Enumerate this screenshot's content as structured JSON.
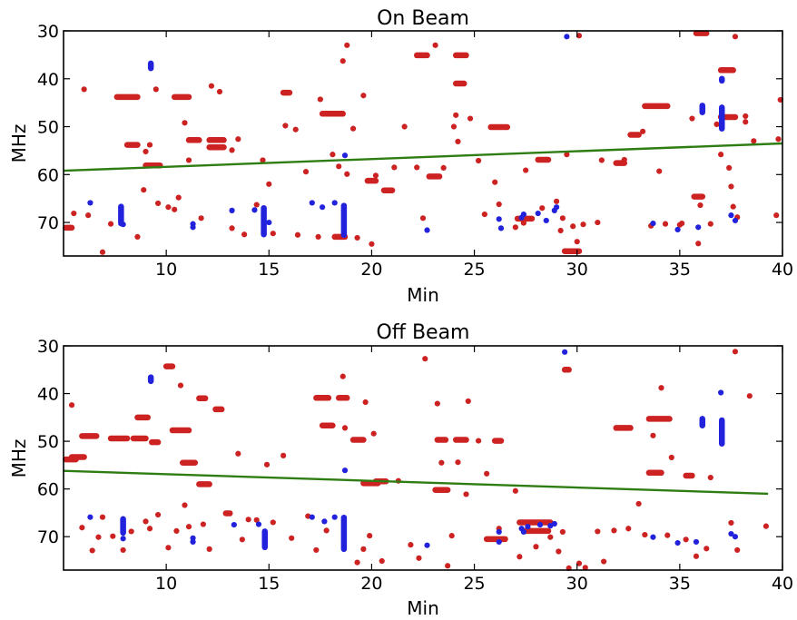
{
  "figure": {
    "colors": {
      "red": "#cc2222",
      "blue": "#2222dd",
      "fit": "#2e7d12",
      "axes": "#000000"
    }
  },
  "chart_data": [
    {
      "type": "scatter",
      "title": "On Beam",
      "xlabel": "Min",
      "ylabel": "MHz",
      "xlim": [
        5,
        40
      ],
      "ylim": [
        77,
        30
      ],
      "y_inverted": true,
      "xticks": [
        "10",
        "15",
        "20",
        "25",
        "30",
        "35",
        "40"
      ],
      "yticks": [
        "30",
        "40",
        "50",
        "60",
        "70"
      ],
      "grid": false,
      "fit_line": {
        "x": [
          5,
          40
        ],
        "y": [
          59.2,
          53.5
        ]
      },
      "red_runs": [
        [
          7.6,
          8.6,
          43.8
        ],
        [
          10.4,
          11.1,
          43.8
        ],
        [
          8.1,
          8.6,
          53.8
        ],
        [
          9.0,
          9.7,
          58.1
        ],
        [
          11.1,
          11.6,
          52.8
        ],
        [
          12.1,
          12.8,
          52.8
        ],
        [
          12.1,
          12.8,
          54.3
        ],
        [
          15.7,
          16.0,
          42.9
        ],
        [
          17.6,
          18.6,
          47.3
        ],
        [
          22.2,
          22.7,
          35.1
        ],
        [
          24.1,
          24.6,
          35.1
        ],
        [
          24.1,
          24.5,
          41.0
        ],
        [
          25.8,
          26.6,
          50.1
        ],
        [
          28.1,
          28.6,
          56.9
        ],
        [
          29.4,
          30.1,
          76.0
        ],
        [
          31.9,
          32.3,
          57.6
        ],
        [
          32.6,
          33.0,
          51.7
        ],
        [
          33.3,
          34.4,
          45.7
        ],
        [
          35.8,
          36.3,
          30.5
        ],
        [
          37.0,
          37.6,
          38.2
        ],
        [
          37.0,
          37.7,
          48.0
        ],
        [
          20.6,
          21.0,
          63.3
        ],
        [
          19.8,
          20.2,
          61.3
        ],
        [
          22.8,
          23.3,
          60.4
        ],
        [
          5.1,
          5.4,
          71.1
        ],
        [
          27.1,
          27.8,
          69.2
        ],
        [
          18.2,
          18.7,
          73.0
        ],
        [
          35.7,
          36.1,
          64.6
        ]
      ],
      "red_points": [
        [
          5.5,
          68.1
        ],
        [
          6.0,
          42.2
        ],
        [
          6.2,
          68.5
        ],
        [
          6.9,
          76.2
        ],
        [
          7.3,
          70.3
        ],
        [
          8.6,
          73.0
        ],
        [
          8.9,
          63.2
        ],
        [
          9.0,
          55.2
        ],
        [
          9.2,
          53.8
        ],
        [
          9.5,
          42.2
        ],
        [
          9.6,
          66.0
        ],
        [
          10.1,
          66.8
        ],
        [
          10.4,
          67.3
        ],
        [
          10.6,
          64.8
        ],
        [
          10.9,
          49.2
        ],
        [
          11.1,
          57.0
        ],
        [
          11.7,
          69.1
        ],
        [
          12.2,
          41.5
        ],
        [
          12.6,
          42.7
        ],
        [
          13.2,
          71.2
        ],
        [
          13.5,
          52.6
        ],
        [
          13.8,
          72.5
        ],
        [
          14.4,
          66.3
        ],
        [
          15.0,
          62.0
        ],
        [
          15.2,
          72.3
        ],
        [
          15.8,
          49.8
        ],
        [
          16.3,
          50.6
        ],
        [
          16.4,
          72.6
        ],
        [
          17.4,
          73.0
        ],
        [
          17.5,
          44.3
        ],
        [
          18.1,
          55.8
        ],
        [
          18.4,
          58.3
        ],
        [
          18.6,
          36.3
        ],
        [
          18.8,
          33.0
        ],
        [
          18.8,
          59.9
        ],
        [
          19.3,
          73.2
        ],
        [
          19.6,
          43.5
        ],
        [
          20.0,
          74.5
        ],
        [
          20.2,
          60.2
        ],
        [
          21.1,
          58.5
        ],
        [
          21.6,
          50.0
        ],
        [
          22.2,
          58.5
        ],
        [
          22.5,
          69.1
        ],
        [
          23.1,
          33.0
        ],
        [
          23.5,
          58.6
        ],
        [
          24.0,
          50.0
        ],
        [
          24.1,
          47.6
        ],
        [
          24.2,
          53.1
        ],
        [
          24.8,
          48.3
        ],
        [
          25.2,
          57.1
        ],
        [
          25.5,
          68.3
        ],
        [
          26.0,
          61.6
        ],
        [
          26.2,
          66.2
        ],
        [
          27.0,
          71.0
        ],
        [
          27.5,
          59.1
        ],
        [
          28.3,
          67.0
        ],
        [
          28.5,
          56.9
        ],
        [
          29.0,
          65.6
        ],
        [
          29.2,
          71.7
        ],
        [
          29.3,
          69.1
        ],
        [
          29.5,
          55.8
        ],
        [
          29.8,
          70.8
        ],
        [
          30.0,
          74.0
        ],
        [
          30.3,
          70.4
        ],
        [
          31.0,
          70.0
        ],
        [
          31.2,
          57.0
        ],
        [
          32.3,
          56.9
        ],
        [
          33.2,
          51.0
        ],
        [
          33.6,
          70.7
        ],
        [
          34.0,
          59.3
        ],
        [
          34.3,
          70.3
        ],
        [
          35.0,
          70.5
        ],
        [
          35.1,
          70.2
        ],
        [
          35.6,
          48.3
        ],
        [
          35.9,
          74.4
        ],
        [
          36.0,
          66.4
        ],
        [
          36.5,
          70.3
        ],
        [
          36.8,
          49.5
        ],
        [
          37.0,
          55.8
        ],
        [
          37.4,
          58.6
        ],
        [
          37.5,
          62.5
        ],
        [
          37.6,
          66.7
        ],
        [
          37.7,
          31.2
        ],
        [
          37.8,
          68.9
        ],
        [
          38.2,
          49.0
        ],
        [
          38.2,
          47.8
        ],
        [
          38.6,
          53.0
        ],
        [
          39.7,
          68.5
        ],
        [
          39.9,
          44.4
        ],
        [
          39.8,
          52.6
        ],
        [
          13.2,
          54.9
        ],
        [
          14.7,
          57.0
        ],
        [
          16.8,
          59.4
        ],
        [
          19.1,
          50.4
        ],
        [
          27.4,
          70.1
        ],
        [
          30.1,
          31.0
        ]
      ],
      "blue_runs": [
        [
          37.05,
          37.05,
          46.0,
          50.4
        ],
        [
          37.05,
          37.05,
          40.0,
          40.4
        ],
        [
          18.65,
          18.65,
          66.5,
          72.6
        ],
        [
          9.25,
          9.25,
          36.8,
          37.8
        ],
        [
          14.75,
          14.75,
          67.0,
          72.5
        ],
        [
          7.8,
          7.8,
          66.7,
          70.2
        ],
        [
          36.1,
          36.1,
          45.6,
          47.0
        ]
      ],
      "blue_points": [
        [
          6.3,
          65.9
        ],
        [
          7.9,
          70.4
        ],
        [
          11.3,
          70.3
        ],
        [
          11.3,
          71.0
        ],
        [
          13.2,
          67.5
        ],
        [
          14.3,
          67.4
        ],
        [
          15.0,
          70.0
        ],
        [
          17.1,
          65.9
        ],
        [
          17.6,
          66.8
        ],
        [
          18.2,
          65.9
        ],
        [
          18.7,
          56.0
        ],
        [
          22.7,
          71.6
        ],
        [
          26.2,
          69.3
        ],
        [
          26.3,
          71.2
        ],
        [
          27.3,
          69.0
        ],
        [
          27.4,
          68.3
        ],
        [
          28.1,
          68.1
        ],
        [
          28.5,
          69.6
        ],
        [
          28.9,
          67.5
        ],
        [
          29.0,
          66.8
        ],
        [
          29.5,
          31.2
        ],
        [
          33.7,
          70.2
        ],
        [
          34.9,
          71.5
        ],
        [
          35.9,
          71.0
        ],
        [
          37.5,
          68.5
        ],
        [
          37.7,
          69.6
        ]
      ]
    },
    {
      "type": "scatter",
      "title": "Off Beam",
      "xlabel": "Min",
      "ylabel": "MHz",
      "xlim": [
        5,
        40
      ],
      "ylim": [
        77,
        30
      ],
      "y_inverted": true,
      "xticks": [
        "10",
        "15",
        "20",
        "25",
        "30",
        "35",
        "40"
      ],
      "yticks": [
        "30",
        "40",
        "50",
        "60",
        "70"
      ],
      "grid": false,
      "fit_line": {
        "x": [
          5,
          39.3
        ],
        "y": [
          56.2,
          61.0
        ]
      },
      "red_runs": [
        [
          10.0,
          10.3,
          34.3
        ],
        [
          7.3,
          8.1,
          49.4
        ],
        [
          8.4,
          9.0,
          49.4
        ],
        [
          8.6,
          9.1,
          45.0
        ],
        [
          9.3,
          9.6,
          50.2
        ],
        [
          10.3,
          11.1,
          47.7
        ],
        [
          10.8,
          11.4,
          54.5
        ],
        [
          11.6,
          12.1,
          59.0
        ],
        [
          11.6,
          11.9,
          41.0
        ],
        [
          12.4,
          12.7,
          43.3
        ],
        [
          12.9,
          13.1,
          65.1
        ],
        [
          17.3,
          17.9,
          40.9
        ],
        [
          18.4,
          18.8,
          40.9
        ],
        [
          17.6,
          18.1,
          46.7
        ],
        [
          19.1,
          19.6,
          49.7
        ],
        [
          19.6,
          20.3,
          58.8
        ],
        [
          20.2,
          20.7,
          58.4
        ],
        [
          23.1,
          23.7,
          60.2
        ],
        [
          23.2,
          23.6,
          49.7
        ],
        [
          24.1,
          24.6,
          49.7
        ],
        [
          26.0,
          26.3,
          49.9
        ],
        [
          27.2,
          28.7,
          67.0
        ],
        [
          27.5,
          28.6,
          68.8
        ],
        [
          29.4,
          29.6,
          35.0
        ],
        [
          31.9,
          32.6,
          47.2
        ],
        [
          33.5,
          34.5,
          45.3
        ],
        [
          33.5,
          34.1,
          56.6
        ],
        [
          35.3,
          35.6,
          57.2
        ],
        [
          5.1,
          5.6,
          53.8
        ],
        [
          5.9,
          6.6,
          48.9
        ],
        [
          5.4,
          6.0,
          53.3
        ],
        [
          25.6,
          26.5,
          70.5
        ]
      ],
      "red_points": [
        [
          5.4,
          42.4
        ],
        [
          5.9,
          68.1
        ],
        [
          6.4,
          72.9
        ],
        [
          6.7,
          70.1
        ],
        [
          6.9,
          65.9
        ],
        [
          7.4,
          69.9
        ],
        [
          7.9,
          72.8
        ],
        [
          8.3,
          68.9
        ],
        [
          9.0,
          66.8
        ],
        [
          9.2,
          68.3
        ],
        [
          9.6,
          65.4
        ],
        [
          10.1,
          72.3
        ],
        [
          10.5,
          68.8
        ],
        [
          10.7,
          38.3
        ],
        [
          10.9,
          63.4
        ],
        [
          11.1,
          67.9
        ],
        [
          11.8,
          67.4
        ],
        [
          12.1,
          72.6
        ],
        [
          13.5,
          52.6
        ],
        [
          13.7,
          70.6
        ],
        [
          14.0,
          66.4
        ],
        [
          14.4,
          66.5
        ],
        [
          14.9,
          54.9
        ],
        [
          15.2,
          67.0
        ],
        [
          15.7,
          53.0
        ],
        [
          16.1,
          70.3
        ],
        [
          16.9,
          65.7
        ],
        [
          17.3,
          72.8
        ],
        [
          17.8,
          68.7
        ],
        [
          18.6,
          36.4
        ],
        [
          18.7,
          47.2
        ],
        [
          19.3,
          75.4
        ],
        [
          19.7,
          41.8
        ],
        [
          19.6,
          72.6
        ],
        [
          19.9,
          69.8
        ],
        [
          20.1,
          48.4
        ],
        [
          20.5,
          75.1
        ],
        [
          21.3,
          58.3
        ],
        [
          21.9,
          71.7
        ],
        [
          22.3,
          74.5
        ],
        [
          22.6,
          32.7
        ],
        [
          23.2,
          42.1
        ],
        [
          23.4,
          54.5
        ],
        [
          23.7,
          76.1
        ],
        [
          23.9,
          69.8
        ],
        [
          24.2,
          54.4
        ],
        [
          24.6,
          61.1
        ],
        [
          24.7,
          41.6
        ],
        [
          25.2,
          49.9
        ],
        [
          25.6,
          56.8
        ],
        [
          26.2,
          68.3
        ],
        [
          27.0,
          60.4
        ],
        [
          27.2,
          74.2
        ],
        [
          28.0,
          72.1
        ],
        [
          28.7,
          70.1
        ],
        [
          29.1,
          73.1
        ],
        [
          29.3,
          69.0
        ],
        [
          29.6,
          76.6
        ],
        [
          30.1,
          75.6
        ],
        [
          30.4,
          76.5
        ],
        [
          31.0,
          68.9
        ],
        [
          31.3,
          75.2
        ],
        [
          31.8,
          68.7
        ],
        [
          32.5,
          68.3
        ],
        [
          33.0,
          63.1
        ],
        [
          33.3,
          69.6
        ],
        [
          33.7,
          48.8
        ],
        [
          34.1,
          38.8
        ],
        [
          34.4,
          69.7
        ],
        [
          34.6,
          53.4
        ],
        [
          35.3,
          70.6
        ],
        [
          35.8,
          74.1
        ],
        [
          36.3,
          72.5
        ],
        [
          36.5,
          57.6
        ],
        [
          37.5,
          67.1
        ],
        [
          37.7,
          31.2
        ],
        [
          37.8,
          72.8
        ],
        [
          38.4,
          40.5
        ],
        [
          39.2,
          67.8
        ]
      ],
      "blue_runs": [
        [
          37.05,
          37.05,
          45.6,
          50.5
        ],
        [
          18.65,
          18.65,
          66.0,
          72.6
        ],
        [
          9.25,
          9.25,
          36.6,
          37.4
        ],
        [
          36.1,
          36.1,
          45.3,
          46.7
        ],
        [
          7.9,
          7.9,
          66.3,
          69.2
        ],
        [
          14.8,
          14.8,
          68.9,
          72.2
        ]
      ],
      "blue_points": [
        [
          6.3,
          65.9
        ],
        [
          7.9,
          70.4
        ],
        [
          11.3,
          70.3
        ],
        [
          11.3,
          71.1
        ],
        [
          13.3,
          67.5
        ],
        [
          14.5,
          67.4
        ],
        [
          17.1,
          65.9
        ],
        [
          17.7,
          66.8
        ],
        [
          18.2,
          65.9
        ],
        [
          18.7,
          56.1
        ],
        [
          22.7,
          71.8
        ],
        [
          26.2,
          69.0
        ],
        [
          26.2,
          71.1
        ],
        [
          27.3,
          68.3
        ],
        [
          27.4,
          69.0
        ],
        [
          27.6,
          67.9
        ],
        [
          28.2,
          67.5
        ],
        [
          28.7,
          67.7
        ],
        [
          28.9,
          67.3
        ],
        [
          29.4,
          31.3
        ],
        [
          33.7,
          70.1
        ],
        [
          34.9,
          71.3
        ],
        [
          35.8,
          71.1
        ],
        [
          37.0,
          39.8
        ],
        [
          37.5,
          69.4
        ],
        [
          37.7,
          70.0
        ]
      ]
    }
  ]
}
